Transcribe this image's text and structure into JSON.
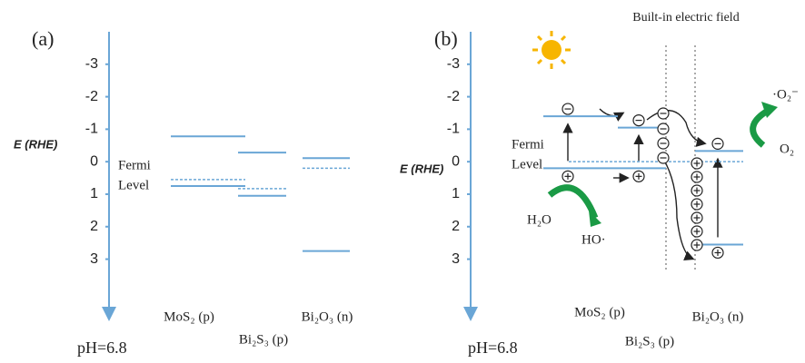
{
  "panels": [
    {
      "label": "(a)",
      "axis_label": "E (RHE)",
      "ylim": [
        -4,
        4.8
      ],
      "ticks": [
        -3,
        -2,
        -1,
        0,
        1,
        2,
        3
      ],
      "fermi_label": [
        "Fermi",
        "Level"
      ],
      "ph": "pH=6.8",
      "materials": [
        {
          "name": "MoS₂ (p)",
          "cb": -0.78,
          "fermi": 0.55,
          "vb": 0.75
        },
        {
          "name": "Bi₂S₃ (p)",
          "cb": -0.28,
          "fermi": 0.83,
          "vb": 1.05
        },
        {
          "name": "Bi₂O₃ (n)",
          "cb": -0.11,
          "fermi": 0.2,
          "vb": 2.75
        }
      ]
    },
    {
      "label": "(b)",
      "axis_label": "E (RHE)",
      "ylim": [
        -4,
        4.8
      ],
      "ticks": [
        -3,
        -2,
        -1,
        0,
        1,
        2,
        3
      ],
      "fermi_label": [
        "Fermi",
        "Level"
      ],
      "ph": "pH=6.8",
      "fermi_level": 0,
      "field_label": "Built-in electric field",
      "species": {
        "h2o": "H₂O",
        "ho": "HO·",
        "o2_radical": "·O₂⁻",
        "o2": "O₂"
      },
      "materials": [
        {
          "name": "MoS₂ (p)",
          "cb": -1.4,
          "vb": 0.2
        },
        {
          "name": "Bi₂S₃ (p)",
          "cb": -1.05,
          "vb": 0.2
        },
        {
          "name": "Bi₂O₃ (n)",
          "cb": -0.33,
          "vb": 2.55
        }
      ]
    }
  ]
}
